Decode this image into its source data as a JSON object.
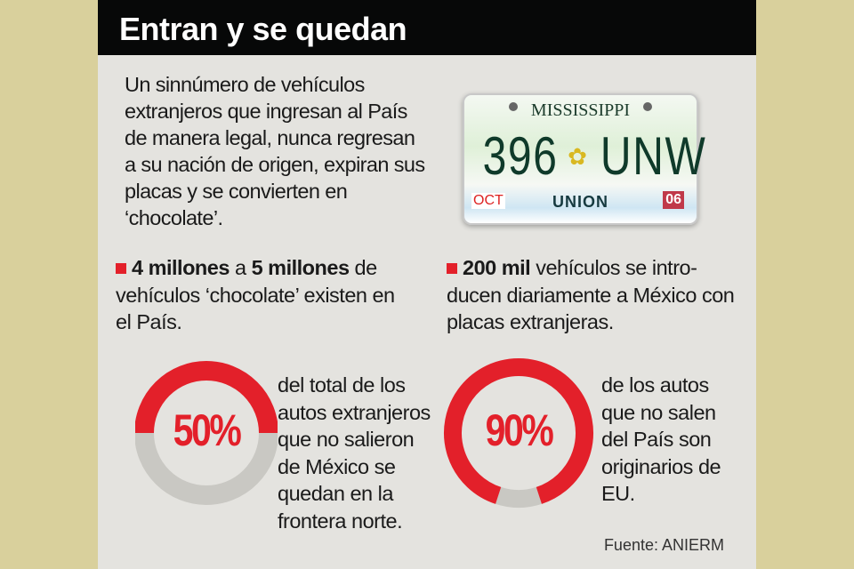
{
  "title": "Entran y se quedan",
  "intro": "Un sinnúmero de vehículos extranjeros que ingresan al País de manera legal, nunca regresan a su nación de origen, expiran sus placas y se convierten en ‘chocolate’.",
  "plate": {
    "state": "MISSISSIPPI",
    "left": "396",
    "right": "UNW",
    "county": "UNION",
    "month": "OCT",
    "year": "06"
  },
  "facts": [
    {
      "b1": "4 millones",
      "t1": " a ",
      "b2": "5 millones",
      "t2": " de vehículos ‘chocolate’ existen en el País."
    },
    {
      "b1": "200 mil",
      "t1": " vehículos se intro-ducen diariamente a México con placas extranjeras."
    }
  ],
  "colors": {
    "accent": "#e3202a",
    "track": "#c9c8c3"
  },
  "chart_data": [
    {
      "type": "pie",
      "label": "50%",
      "value": 50,
      "text": "del total de los autos extranjeros que no salieron de México se quedan en la frontera norte."
    },
    {
      "type": "pie",
      "label": "90%",
      "value": 90,
      "text": "de los autos que no salen del País son originarios de EU."
    }
  ],
  "source": "Fuente: ANIERM"
}
